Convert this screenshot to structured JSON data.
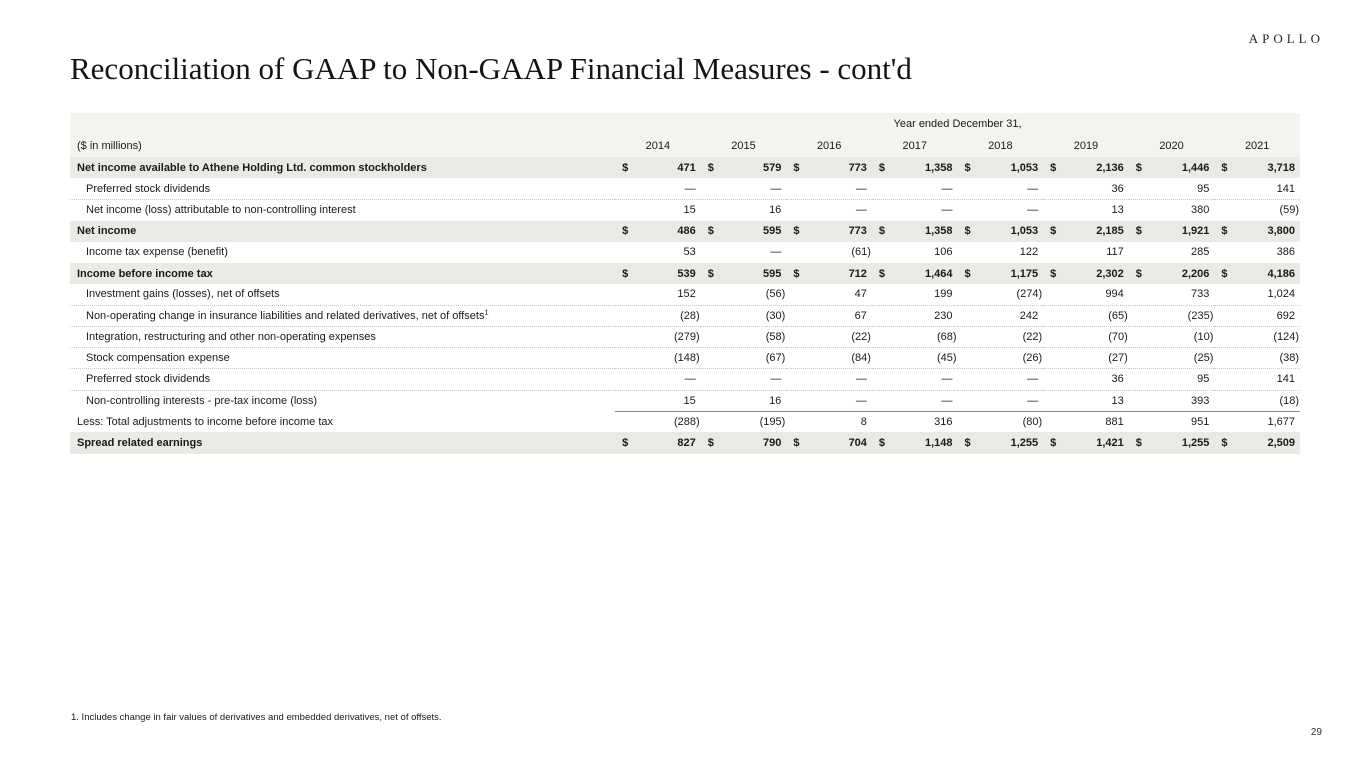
{
  "logo": "APOLLO",
  "title": "Reconciliation of GAAP to Non-GAAP Financial Measures - cont'd",
  "footnote": "1. Includes change in fair values of derivatives and embedded derivatives, net of offsets.",
  "page_number": "29",
  "colors": {
    "subtotal_row_shading": "#e9e9e5",
    "header_band_shading": "#f3f3f0",
    "text": "#1a1a1a"
  },
  "table": {
    "units_label": "($ in millions)",
    "header_group": "Year ended December 31,",
    "currency_symbol": "$",
    "years": [
      "2014",
      "2015",
      "2016",
      "2017",
      "2018",
      "2019",
      "2020",
      "2021"
    ],
    "rows": [
      {
        "label": "Net income available to Athene Holding Ltd. common stockholders",
        "style": "subtotal",
        "dollar": true,
        "values": [
          "471",
          "579",
          "773",
          "1,358",
          "1,053",
          "2,136",
          "1,446",
          "3,718"
        ]
      },
      {
        "label": "Preferred stock dividends",
        "style": "detail",
        "indent": true,
        "values": [
          "—",
          "—",
          "—",
          "—",
          "—",
          "36",
          "95",
          "141"
        ]
      },
      {
        "label": "Net income (loss) attributable to non-controlling interest",
        "style": "detail",
        "indent": true,
        "values": [
          "15",
          "16",
          "—",
          "—",
          "—",
          "13",
          "380",
          "(59)"
        ]
      },
      {
        "label": "Net income",
        "style": "subtotal",
        "dollar": true,
        "values": [
          "486",
          "595",
          "773",
          "1,358",
          "1,053",
          "2,185",
          "1,921",
          "3,800"
        ]
      },
      {
        "label": "Income tax expense (benefit)",
        "style": "detail",
        "indent": true,
        "values": [
          "53",
          "—",
          "(61)",
          "106",
          "122",
          "117",
          "285",
          "386"
        ]
      },
      {
        "label": "Income before income tax",
        "style": "subtotal",
        "dollar": true,
        "values": [
          "539",
          "595",
          "712",
          "1,464",
          "1,175",
          "2,302",
          "2,206",
          "4,186"
        ]
      },
      {
        "label": "Investment gains (losses), net of offsets",
        "style": "detail",
        "indent": true,
        "values": [
          "152",
          "(56)",
          "47",
          "199",
          "(274)",
          "994",
          "733",
          "1,024"
        ]
      },
      {
        "label": "Non-operating change in insurance liabilities and related derivatives, net of offsets",
        "superscript": "1",
        "style": "detail",
        "indent": true,
        "values": [
          "(28)",
          "(30)",
          "67",
          "230",
          "242",
          "(65)",
          "(235)",
          "692"
        ]
      },
      {
        "label": "Integration, restructuring and other non-operating expenses",
        "style": "detail",
        "indent": true,
        "values": [
          "(279)",
          "(58)",
          "(22)",
          "(68)",
          "(22)",
          "(70)",
          "(10)",
          "(124)"
        ]
      },
      {
        "label": "Stock compensation expense",
        "style": "detail",
        "indent": true,
        "values": [
          "(148)",
          "(67)",
          "(84)",
          "(45)",
          "(26)",
          "(27)",
          "(25)",
          "(38)"
        ]
      },
      {
        "label": "Preferred stock dividends",
        "style": "detail",
        "indent": true,
        "values": [
          "—",
          "—",
          "—",
          "—",
          "—",
          "36",
          "95",
          "141"
        ]
      },
      {
        "label": "Non-controlling interests - pre-tax income (loss)",
        "style": "detail",
        "indent": true,
        "values": [
          "15",
          "16",
          "—",
          "—",
          "—",
          "13",
          "393",
          "(18)"
        ]
      },
      {
        "label": "Less: Total adjustments to income before income tax",
        "style": "total-line",
        "values": [
          "(288)",
          "(195)",
          "8",
          "316",
          "(80)",
          "881",
          "951",
          "1,677"
        ]
      },
      {
        "label": "Spread related earnings",
        "style": "subtotal",
        "dollar": true,
        "values": [
          "827",
          "790",
          "704",
          "1,148",
          "1,255",
          "1,421",
          "1,255",
          "2,509"
        ]
      }
    ]
  }
}
